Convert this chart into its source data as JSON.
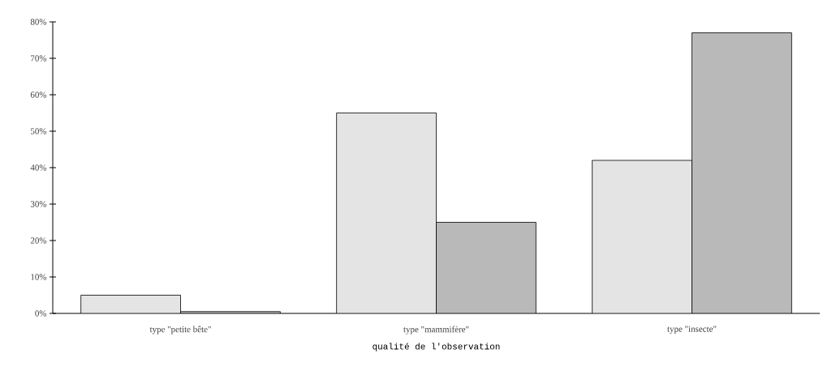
{
  "chart_data": {
    "type": "bar",
    "xlabel": "qualité de l'observation",
    "categories": [
      "type \"petite bête\"",
      "type \"mammifère\"",
      "type \"insecte\""
    ],
    "series": [
      {
        "color": "#e4e4e4",
        "values": [
          5,
          55,
          42
        ]
      },
      {
        "color": "#b9b9b9",
        "values": [
          0.5,
          25,
          77
        ]
      }
    ],
    "ylim": [
      0,
      80
    ],
    "yticks": [
      {
        "value": 0,
        "label": "0%"
      },
      {
        "value": 10,
        "label": "10%"
      },
      {
        "value": 20,
        "label": "20%"
      },
      {
        "value": 30,
        "label": "30%"
      },
      {
        "value": 40,
        "label": "40%"
      },
      {
        "value": 50,
        "label": "50%"
      },
      {
        "value": 60,
        "label": "60%"
      },
      {
        "value": 70,
        "label": "70%"
      },
      {
        "value": 80,
        "label": "80%"
      }
    ],
    "grid": false
  }
}
